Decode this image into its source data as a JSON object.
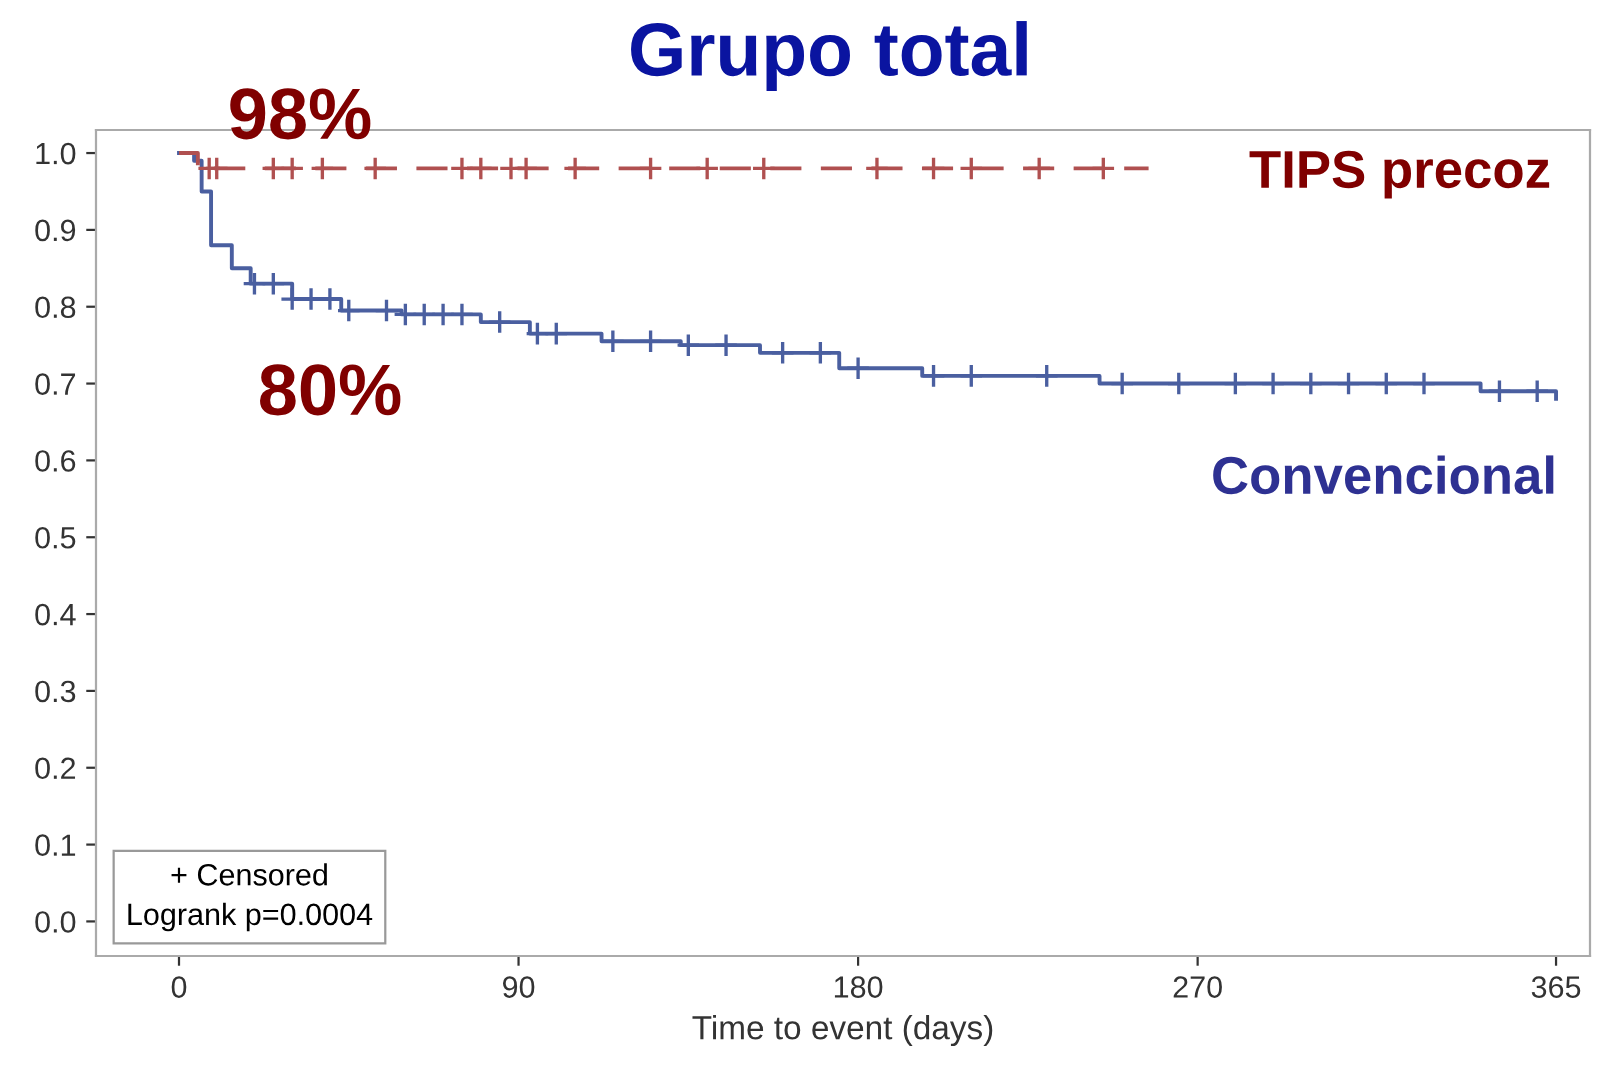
{
  "chart_data": {
    "type": "step",
    "title": "Grupo total",
    "xlabel": "Time to event (days)",
    "xlim": [
      -22,
      374
    ],
    "ylim": [
      -0.045,
      1.03
    ],
    "xticks": [
      0,
      90,
      180,
      270,
      365
    ],
    "yticks": [
      {
        "value": 0,
        "label": "0.0"
      },
      0.1,
      0.2,
      0.3,
      0.4,
      0.5,
      0.6,
      0.7,
      0.8,
      0.9,
      {
        "value": 1,
        "label": "1.0"
      }
    ],
    "grid": false,
    "legend": false,
    "series": [
      {
        "color": "#4a5fa0",
        "line_style": "solid",
        "marker": "none",
        "x": [
          0,
          4,
          6,
          8.5,
          14,
          19,
          30,
          43,
          59,
          80,
          93,
          112,
          133,
          154,
          175,
          197,
          244,
          345,
          365
        ],
        "values": [
          1.0,
          0.99,
          0.95,
          0.88,
          0.85,
          0.83,
          0.81,
          0.795,
          0.79,
          0.78,
          0.765,
          0.755,
          0.75,
          0.74,
          0.72,
          0.71,
          0.7,
          0.69,
          0.68
        ]
      },
      {
        "color": "#b05050",
        "line_style": "dashed",
        "marker": "none",
        "x": [
          0,
          5,
          257
        ],
        "values": [
          1.0,
          0.98,
          0.98
        ]
      },
      {
        "type": "scatter",
        "color": "#4a5fa0",
        "marker": "cross",
        "x": [
          20,
          25,
          30,
          35,
          40,
          45,
          55,
          60,
          65,
          70,
          75,
          85,
          95,
          100,
          115,
          125,
          135,
          145,
          160,
          170,
          180,
          200,
          210,
          230,
          250,
          265,
          280,
          290,
          300,
          310,
          320,
          330,
          350,
          360
        ],
        "values": [
          0.83,
          0.83,
          0.81,
          0.81,
          0.81,
          0.795,
          0.795,
          0.79,
          0.79,
          0.79,
          0.79,
          0.78,
          0.765,
          0.765,
          0.755,
          0.755,
          0.75,
          0.75,
          0.74,
          0.74,
          0.72,
          0.71,
          0.71,
          0.71,
          0.7,
          0.7,
          0.7,
          0.7,
          0.7,
          0.7,
          0.7,
          0.7,
          0.69,
          0.69
        ]
      },
      {
        "type": "scatter",
        "color": "#b05050",
        "marker": "cross",
        "x": [
          8,
          10,
          25,
          30,
          38,
          52,
          75,
          80,
          88,
          92,
          105,
          125,
          140,
          155,
          185,
          200,
          210,
          228,
          245
        ],
        "values": [
          0.98,
          0.98,
          0.98,
          0.98,
          0.98,
          0.98,
          0.98,
          0.98,
          0.98,
          0.98,
          0.98,
          0.98,
          0.98,
          0.98,
          0.98,
          0.98,
          0.98,
          0.98,
          0.98
        ]
      }
    ],
    "annotations": [
      "98%",
      "80%",
      "TIPS precoz",
      "Convencional",
      "+ Censored",
      "Logrank p=0.0004"
    ]
  }
}
